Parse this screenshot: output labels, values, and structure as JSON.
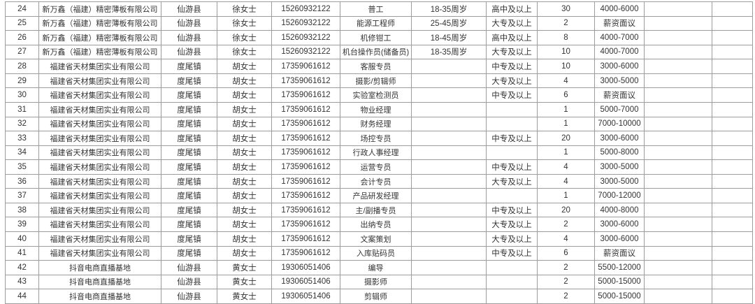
{
  "colors": {
    "background": "#ffffff",
    "border": "#9c9c9c",
    "text": "#333333"
  },
  "table": {
    "columns": [
      {
        "key": "row-number"
      },
      {
        "key": "company"
      },
      {
        "key": "town"
      },
      {
        "key": "contact"
      },
      {
        "key": "phone"
      },
      {
        "key": "position"
      },
      {
        "key": "age-range"
      },
      {
        "key": "education"
      },
      {
        "key": "openings"
      },
      {
        "key": "salary"
      },
      {
        "key": "empty-1"
      },
      {
        "key": "empty-2"
      }
    ],
    "rows": [
      [
        "24",
        "新万鑫（福建）精密薄板有限公司",
        "仙游县",
        "徐女士",
        "15260932122",
        "普工",
        "18-35周岁",
        "高中及以上",
        "30",
        "4000-6000",
        "",
        ""
      ],
      [
        "25",
        "新万鑫（福建）精密薄板有限公司",
        "仙游县",
        "徐女士",
        "15260932122",
        "能源工程师",
        "25-45周岁",
        "大专及以上",
        "2",
        "薪资面议",
        "",
        ""
      ],
      [
        "26",
        "新万鑫（福建）精密薄板有限公司",
        "仙游县",
        "徐女士",
        "15260932122",
        "机修钳工",
        "18-45周岁",
        "高中及以上",
        "8",
        "4000-7000",
        "",
        ""
      ],
      [
        "27",
        "新万鑫（福建）精密薄板有限公司",
        "仙游县",
        "徐女士",
        "15260932122",
        "机台操作员(储备员)",
        "18-35周岁",
        "大专及以上",
        "10",
        "4000-7000",
        "",
        ""
      ],
      [
        "28",
        "福建省天材集团实业有限公司",
        "度尾镇",
        "胡女士",
        "17359061612",
        "客服专员",
        "",
        "中专及以上",
        "10",
        "3000-6000",
        "",
        ""
      ],
      [
        "29",
        "福建省天材集团实业有限公司",
        "度尾镇",
        "胡女士",
        "17359061612",
        "摄影/剪辑师",
        "",
        "大专及以上",
        "4",
        "3000-5000",
        "",
        ""
      ],
      [
        "30",
        "福建省天材集团实业有限公司",
        "度尾镇",
        "胡女士",
        "17359061612",
        "实验室检测员",
        "",
        "中专及以上",
        "6",
        "薪资面议",
        "",
        ""
      ],
      [
        "31",
        "福建省天材集团实业有限公司",
        "度尾镇",
        "胡女士",
        "17359061612",
        "物业经理",
        "",
        "",
        "1",
        "5000-7000",
        "",
        ""
      ],
      [
        "32",
        "福建省天材集团实业有限公司",
        "度尾镇",
        "胡女士",
        "17359061612",
        "财务经理",
        "",
        "",
        "1",
        "7000-10000",
        "",
        ""
      ],
      [
        "33",
        "福建省天材集团实业有限公司",
        "度尾镇",
        "胡女士",
        "17359061612",
        "场控专员",
        "",
        "中专及以上",
        "20",
        "3000-6000",
        "",
        ""
      ],
      [
        "34",
        "福建省天材集团实业有限公司",
        "度尾镇",
        "胡女士",
        "17359061612",
        "行政人事经理",
        "",
        "",
        "1",
        "5000-8000",
        "",
        ""
      ],
      [
        "35",
        "福建省天材集团实业有限公司",
        "度尾镇",
        "胡女士",
        "17359061612",
        "运营专员",
        "",
        "中专及以上",
        "4",
        "3000-5000",
        "",
        ""
      ],
      [
        "36",
        "福建省天材集团实业有限公司",
        "度尾镇",
        "胡女士",
        "17359061612",
        "会计专员",
        "",
        "大专及以上",
        "4",
        "3000-5000",
        "",
        ""
      ],
      [
        "37",
        "福建省天材集团实业有限公司",
        "度尾镇",
        "胡女士",
        "17359061612",
        "产品研发经理",
        "",
        "",
        "1",
        "7000-12000",
        "",
        ""
      ],
      [
        "38",
        "福建省天材集团实业有限公司",
        "度尾镇",
        "胡女士",
        "17359061612",
        "主/副播专员",
        "",
        "中专及以上",
        "20",
        "4000-8000",
        "",
        ""
      ],
      [
        "39",
        "福建省天材集团实业有限公司",
        "度尾镇",
        "胡女士",
        "17359061612",
        "出纳专员",
        "",
        "大专及以上",
        "2",
        "3000-6000",
        "",
        ""
      ],
      [
        "40",
        "福建省天材集团实业有限公司",
        "度尾镇",
        "胡女士",
        "17359061612",
        "文案策划",
        "",
        "大专及以上",
        "4",
        "3000-6000",
        "",
        ""
      ],
      [
        "41",
        "福建省天材集团实业有限公司",
        "度尾镇",
        "胡女士",
        "17359061612",
        "入库贴码员",
        "",
        "中专及以上",
        "6",
        "薪资面议",
        "",
        ""
      ],
      [
        "42",
        "抖音电商直播基地",
        "仙游县",
        "黄女士",
        "19306051406",
        "编导",
        "",
        "",
        "2",
        "5500-12000",
        "",
        ""
      ],
      [
        "43",
        "抖音电商直播基地",
        "仙游县",
        "黄女士",
        "19306051406",
        "摄影师",
        "",
        "",
        "2",
        "5000-15000",
        "",
        ""
      ],
      [
        "44",
        "抖音电商直播基地",
        "仙游县",
        "黄女士",
        "19306051406",
        "剪辑师",
        "",
        "",
        "2",
        "5000-15000",
        "",
        ""
      ]
    ]
  }
}
